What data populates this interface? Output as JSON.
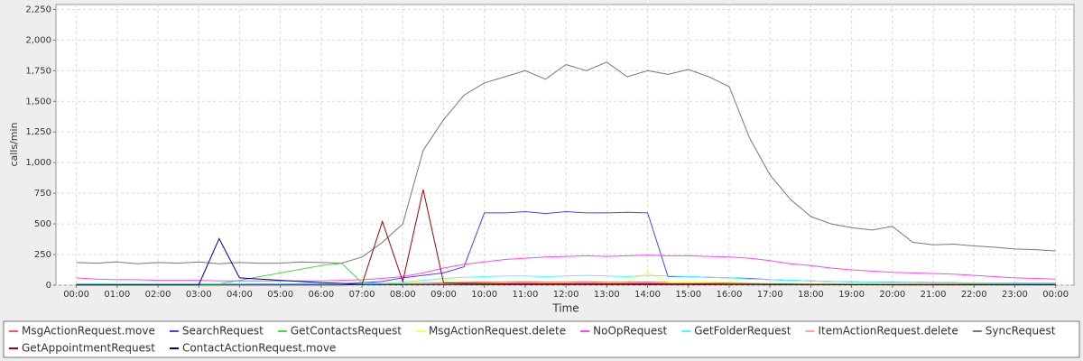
{
  "chart_data": {
    "type": "line",
    "y_label": "calls/min",
    "x_label": "Time",
    "grid": true,
    "xlim": [
      -0.5,
      24.45
    ],
    "ylim": [
      0,
      2290
    ],
    "xticks": [
      {
        "value": 0,
        "label": "00:00"
      },
      {
        "value": 1,
        "label": "01:00"
      },
      {
        "value": 2,
        "label": "02:00"
      },
      {
        "value": 3,
        "label": "03:00"
      },
      {
        "value": 4,
        "label": "04:00"
      },
      {
        "value": 5,
        "label": "05:00"
      },
      {
        "value": 6,
        "label": "06:00"
      },
      {
        "value": 7,
        "label": "07:00"
      },
      {
        "value": 8,
        "label": "08:00"
      },
      {
        "value": 9,
        "label": "09:00"
      },
      {
        "value": 10,
        "label": "10:00"
      },
      {
        "value": 11,
        "label": "11:00"
      },
      {
        "value": 12,
        "label": "12:00"
      },
      {
        "value": 13,
        "label": "13:00"
      },
      {
        "value": 14,
        "label": "14:00"
      },
      {
        "value": 15,
        "label": "15:00"
      },
      {
        "value": 16,
        "label": "16:00"
      },
      {
        "value": 17,
        "label": "17:00"
      },
      {
        "value": 18,
        "label": "18:00"
      },
      {
        "value": 19,
        "label": "19:00"
      },
      {
        "value": 20,
        "label": "20:00"
      },
      {
        "value": 21,
        "label": "21:00"
      },
      {
        "value": 22,
        "label": "22:00"
      },
      {
        "value": 23,
        "label": "23:00"
      },
      {
        "value": 24,
        "label": "00:00"
      }
    ],
    "yticks": [
      0,
      250,
      500,
      750,
      {
        "value": 1000,
        "label": "1,000"
      },
      {
        "value": 1250,
        "label": "1,250"
      },
      {
        "value": 1500,
        "label": "1,500"
      },
      {
        "value": 1750,
        "label": "1,750"
      },
      {
        "value": 2000,
        "label": "2,000"
      },
      {
        "value": 2250,
        "label": "2,250"
      }
    ],
    "x": [
      0,
      0.5,
      1,
      1.5,
      2,
      2.5,
      3,
      3.5,
      4,
      4.5,
      5,
      5.5,
      6,
      6.5,
      7,
      7.5,
      8,
      8.5,
      9,
      9.5,
      10,
      10.5,
      11,
      11.5,
      12,
      12.5,
      13,
      13.5,
      14,
      14.5,
      15,
      15.5,
      16,
      16.5,
      17,
      17.5,
      18,
      18.5,
      19,
      19.5,
      20,
      20.5,
      21,
      21.5,
      22,
      22.5,
      23,
      23.5,
      24
    ],
    "series": [
      {
        "name": "MsgActionRequest.move",
        "color": "#ff5555",
        "values": [
          3,
          3,
          3,
          3,
          3,
          3,
          3,
          3,
          3,
          3,
          3,
          3,
          3,
          3,
          5,
          8,
          12,
          15,
          20,
          22,
          25,
          25,
          25,
          25,
          25,
          25,
          25,
          25,
          25,
          22,
          22,
          20,
          18,
          15,
          12,
          10,
          10,
          8,
          8,
          6,
          6,
          5,
          5,
          5,
          4,
          4,
          4,
          4,
          4
        ]
      },
      {
        "name": "SearchRequest",
        "color": "#4444ff",
        "values": [
          10,
          12,
          10,
          11,
          10,
          10,
          12,
          10,
          10,
          11,
          10,
          12,
          10,
          11,
          20,
          30,
          60,
          80,
          100,
          150,
          590,
          590,
          600,
          585,
          600,
          590,
          590,
          595,
          590,
          70,
          70,
          65,
          60,
          55,
          45,
          40,
          35,
          30,
          28,
          25,
          25,
          22,
          20,
          20,
          18,
          17,
          16,
          15,
          15
        ]
      },
      {
        "name": "GetContactsRequest",
        "color": "#44dd44",
        "values": [
          10,
          10,
          10,
          10,
          10,
          10,
          10,
          12,
          40,
          70,
          100,
          130,
          160,
          180,
          20,
          15,
          10,
          10,
          10,
          10,
          10,
          10,
          10,
          10,
          10,
          10,
          10,
          10,
          10,
          10,
          10,
          10,
          10,
          10,
          10,
          10,
          10,
          10,
          10,
          10,
          10,
          10,
          10,
          10,
          10,
          10,
          10,
          10,
          10
        ]
      },
      {
        "name": "MsgActionRequest.delete",
        "color": "#ffff44",
        "values": [
          5,
          5,
          5,
          5,
          5,
          5,
          5,
          5,
          5,
          5,
          5,
          5,
          5,
          5,
          10,
          15,
          20,
          30,
          40,
          35,
          30,
          30,
          35,
          30,
          30,
          35,
          30,
          30,
          100,
          25,
          25,
          25,
          25,
          20,
          20,
          18,
          15,
          15,
          12,
          12,
          10,
          12,
          10,
          10,
          8,
          8,
          8,
          8,
          8
        ]
      },
      {
        "name": "NoOpRequest",
        "color": "#ff44ff",
        "values": [
          60,
          50,
          45,
          45,
          40,
          40,
          40,
          35,
          35,
          35,
          35,
          35,
          35,
          40,
          45,
          55,
          70,
          100,
          140,
          170,
          190,
          210,
          220,
          230,
          235,
          240,
          235,
          240,
          245,
          240,
          240,
          235,
          230,
          220,
          200,
          175,
          160,
          140,
          125,
          115,
          105,
          100,
          95,
          90,
          80,
          70,
          60,
          55,
          50
        ]
      },
      {
        "name": "GetFolderRequest",
        "color": "#44ffff",
        "values": [
          8,
          8,
          8,
          8,
          8,
          8,
          8,
          8,
          8,
          8,
          8,
          8,
          8,
          8,
          10,
          15,
          25,
          40,
          55,
          65,
          70,
          75,
          75,
          70,
          75,
          80,
          75,
          70,
          80,
          75,
          70,
          65,
          60,
          50,
          45,
          40,
          35,
          30,
          28,
          25,
          22,
          20,
          18,
          18,
          16,
          15,
          14,
          12,
          12
        ]
      },
      {
        "name": "ItemActionRequest.delete",
        "color": "#ffaa88",
        "values": [
          2,
          2,
          2,
          2,
          2,
          2,
          2,
          2,
          2,
          2,
          2,
          2,
          2,
          2,
          3,
          5,
          8,
          10,
          12,
          15,
          15,
          15,
          15,
          15,
          15,
          15,
          15,
          15,
          15,
          12,
          12,
          10,
          10,
          8,
          8,
          6,
          6,
          5,
          5,
          4,
          4,
          3,
          3,
          3,
          3,
          3,
          3,
          3,
          3
        ]
      },
      {
        "name": "SyncRequest",
        "color": "#777777",
        "values": [
          185,
          180,
          190,
          175,
          185,
          180,
          190,
          175,
          185,
          180,
          180,
          190,
          185,
          180,
          230,
          350,
          500,
          1100,
          1350,
          1550,
          1650,
          1700,
          1750,
          1680,
          1800,
          1750,
          1820,
          1700,
          1750,
          1720,
          1760,
          1700,
          1620,
          1200,
          900,
          700,
          560,
          500,
          470,
          450,
          480,
          350,
          330,
          335,
          320,
          310,
          295,
          290,
          280
        ]
      },
      {
        "name": "GetAppointmentRequest",
        "color": "#aa0000",
        "values": [
          2,
          2,
          2,
          2,
          2,
          2,
          2,
          2,
          2,
          2,
          2,
          2,
          2,
          2,
          5,
          520,
          30,
          780,
          20,
          15,
          15,
          12,
          12,
          12,
          12,
          12,
          12,
          12,
          12,
          10,
          10,
          10,
          8,
          8,
          6,
          6,
          5,
          5,
          4,
          4,
          3,
          3,
          3,
          3,
          3,
          3,
          3,
          3,
          3
        ]
      },
      {
        "name": "ContactActionRequest.move",
        "color": "#000099",
        "values": [
          3,
          3,
          3,
          3,
          3,
          3,
          3,
          380,
          60,
          50,
          40,
          30,
          20,
          15,
          5,
          5,
          5,
          5,
          5,
          5,
          5,
          5,
          5,
          5,
          5,
          5,
          5,
          5,
          5,
          5,
          5,
          5,
          5,
          5,
          5,
          5,
          5,
          5,
          5,
          5,
          5,
          5,
          5,
          5,
          5,
          5,
          5,
          5,
          5
        ]
      }
    ]
  }
}
